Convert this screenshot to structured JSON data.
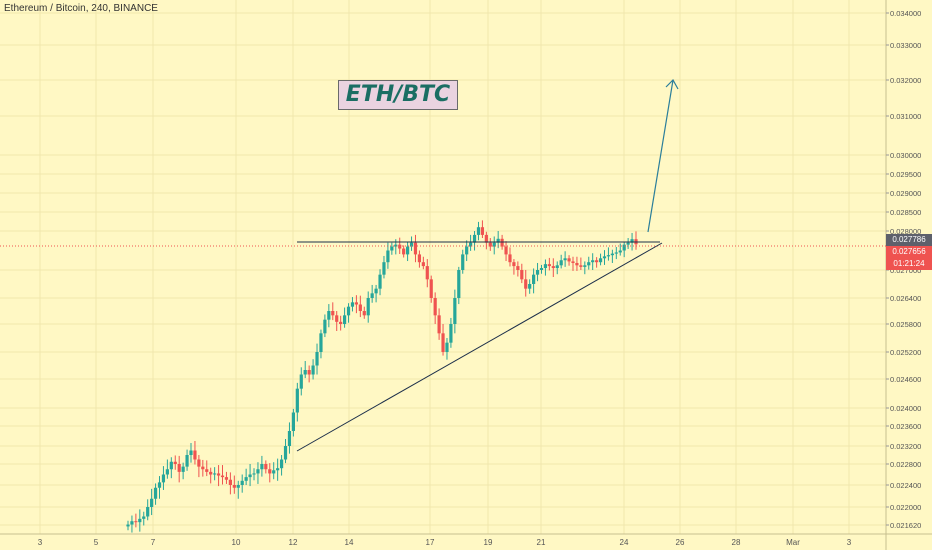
{
  "header": {
    "title": "Ethereum / Bitcoin, 240, BINANCE"
  },
  "annotation": {
    "label": "ETH/BTC",
    "label_bg": "#ead3e0",
    "label_color": "#1a6e63"
  },
  "price_tags": {
    "last_price": "0.027786",
    "bid_price": "0.027656",
    "countdown": "01:21:24",
    "last_price_bg": "#5d606b",
    "bid_price_bg": "#ef5350",
    "countdown_bg": "#ef5350"
  },
  "colors": {
    "background": "#fff8c4",
    "up": "#26a69a",
    "down": "#ef5350",
    "grid": "#f1e7ad",
    "line": "#1c2f4a",
    "arrow": "#2a7e9a"
  },
  "chart_data": {
    "type": "candlestick",
    "title": "Ethereum / Bitcoin, 240, BINANCE",
    "interval": "240",
    "exchange": "BINANCE",
    "yaxis_ticks": [
      "0.034000",
      "0.033000",
      "0.032000",
      "0.031000",
      "0.030000",
      "0.029500",
      "0.029000",
      "0.028500",
      "0.028000",
      "0.027000",
      "0.026400",
      "0.025800",
      "0.025200",
      "0.024600",
      "0.024000",
      "0.023600",
      "0.023200",
      "0.022800",
      "0.022400",
      "0.022000",
      "0.021620"
    ],
    "xaxis_ticks": [
      "3",
      "5",
      "7",
      "10",
      "12",
      "14",
      "17",
      "19",
      "21",
      "24",
      "26",
      "28",
      "Mar",
      "3"
    ],
    "ylim": [
      0.0215,
      0.0342
    ],
    "candles_close_approx": [
      0.02163,
      0.0217,
      0.02168,
      0.02175,
      0.0218,
      0.022,
      0.02215,
      0.02235,
      0.02245,
      0.0226,
      0.0227,
      0.02285,
      0.0228,
      0.02265,
      0.02275,
      0.023,
      0.0231,
      0.0229,
      0.02275,
      0.0227,
      0.02265,
      0.0226,
      0.02262,
      0.02258,
      0.02255,
      0.0225,
      0.0224,
      0.02235,
      0.0224,
      0.02248,
      0.02255,
      0.0226,
      0.02262,
      0.0227,
      0.0228,
      0.0227,
      0.02262,
      0.02268,
      0.02272,
      0.0229,
      0.0232,
      0.0235,
      0.0239,
      0.0244,
      0.0247,
      0.0248,
      0.0247,
      0.0249,
      0.0252,
      0.0256,
      0.0259,
      0.0261,
      0.026,
      0.02585,
      0.0258,
      0.026,
      0.0262,
      0.0263,
      0.02625,
      0.0261,
      0.026,
      0.0264,
      0.0265,
      0.0266,
      0.0269,
      0.0272,
      0.0275,
      0.0276,
      0.02765,
      0.02755,
      0.0274,
      0.0276,
      0.0277,
      0.0274,
      0.0272,
      0.0271,
      0.0268,
      0.0264,
      0.026,
      0.0256,
      0.0252,
      0.0254,
      0.0258,
      0.0264,
      0.027,
      0.0274,
      0.0276,
      0.0277,
      0.0279,
      0.0281,
      0.0279,
      0.0277,
      0.0276,
      0.0277,
      0.0278,
      0.0276,
      0.0274,
      0.0272,
      0.0271,
      0.027,
      0.0268,
      0.0266,
      0.0267,
      0.0269,
      0.027,
      0.02705,
      0.02715,
      0.0271,
      0.02705,
      0.02712,
      0.02725,
      0.0273,
      0.02722,
      0.02718,
      0.02712,
      0.02708,
      0.02712,
      0.0272,
      0.02725,
      0.0272,
      0.0273,
      0.02735,
      0.02738,
      0.02742,
      0.02745,
      0.0275,
      0.02765,
      0.0277,
      0.02779,
      0.02766
    ],
    "annotations": [
      {
        "type": "horizontal_line",
        "value": 0.027786
      },
      {
        "type": "trend_line",
        "from": [
          0.023
        ],
        "to": [
          0.02782
        ]
      },
      {
        "type": "arrow",
        "direction": "up"
      }
    ],
    "grid": true
  }
}
